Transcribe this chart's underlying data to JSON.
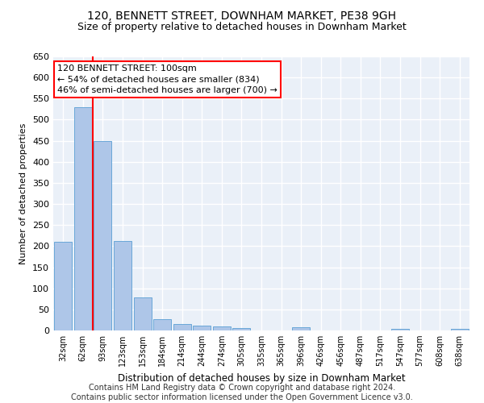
{
  "title": "120, BENNETT STREET, DOWNHAM MARKET, PE38 9GH",
  "subtitle": "Size of property relative to detached houses in Downham Market",
  "xlabel": "Distribution of detached houses by size in Downham Market",
  "ylabel": "Number of detached properties",
  "categories": [
    "32sqm",
    "62sqm",
    "93sqm",
    "123sqm",
    "153sqm",
    "184sqm",
    "214sqm",
    "244sqm",
    "274sqm",
    "305sqm",
    "335sqm",
    "365sqm",
    "396sqm",
    "426sqm",
    "456sqm",
    "487sqm",
    "517sqm",
    "547sqm",
    "577sqm",
    "608sqm",
    "638sqm"
  ],
  "values": [
    210,
    530,
    450,
    213,
    78,
    27,
    15,
    12,
    10,
    5,
    0,
    0,
    7,
    0,
    0,
    0,
    0,
    3,
    0,
    0,
    3
  ],
  "bar_color": "#aec6e8",
  "bar_edge_color": "#5a9fd4",
  "red_line_x": 1.5,
  "annotation_text": "120 BENNETT STREET: 100sqm\n← 54% of detached houses are smaller (834)\n46% of semi-detached houses are larger (700) →",
  "annotation_box_color": "white",
  "annotation_box_edge_color": "red",
  "ylim": [
    0,
    650
  ],
  "yticks": [
    0,
    50,
    100,
    150,
    200,
    250,
    300,
    350,
    400,
    450,
    500,
    550,
    600,
    650
  ],
  "background_color": "#eaf0f8",
  "grid_color": "white",
  "title_fontsize": 10,
  "subtitle_fontsize": 9,
  "footer_text": "Contains HM Land Registry data © Crown copyright and database right 2024.\nContains public sector information licensed under the Open Government Licence v3.0.",
  "footer_fontsize": 7
}
